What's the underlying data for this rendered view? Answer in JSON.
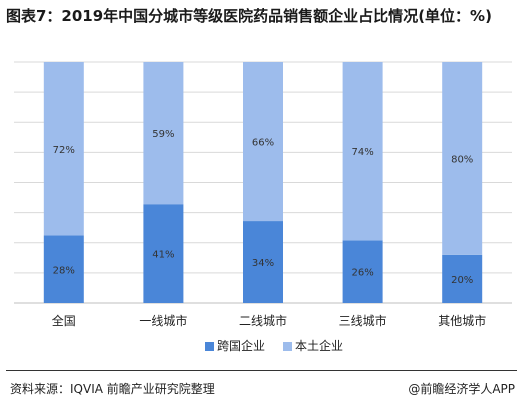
{
  "page": {
    "title": "图表7：2019年中国分城市等级医院药品销售额企业占比情况(单位：%)",
    "source": "资料来源：IQVIA 前瞻产业研究院整理",
    "brand": "@前瞻经济学人APP"
  },
  "chart_data": {
    "type": "bar",
    "stacked": true,
    "categories": [
      "全国",
      "一线城市",
      "二线城市",
      "三线城市",
      "其他城市"
    ],
    "series": [
      {
        "name": "跨国企业",
        "values": [
          28,
          41,
          34,
          26,
          20
        ],
        "labels": [
          "28%",
          "41%",
          "34%",
          "26%",
          "20%"
        ],
        "color": "#4a86d8"
      },
      {
        "name": "本土企业",
        "values": [
          72,
          59,
          66,
          74,
          80
        ],
        "labels": [
          "72%",
          "59%",
          "66%",
          "74%",
          "80%"
        ],
        "color": "#9dbcec"
      }
    ],
    "ylim": [
      0,
      100
    ],
    "grid": true,
    "legend_position": "bottom"
  }
}
